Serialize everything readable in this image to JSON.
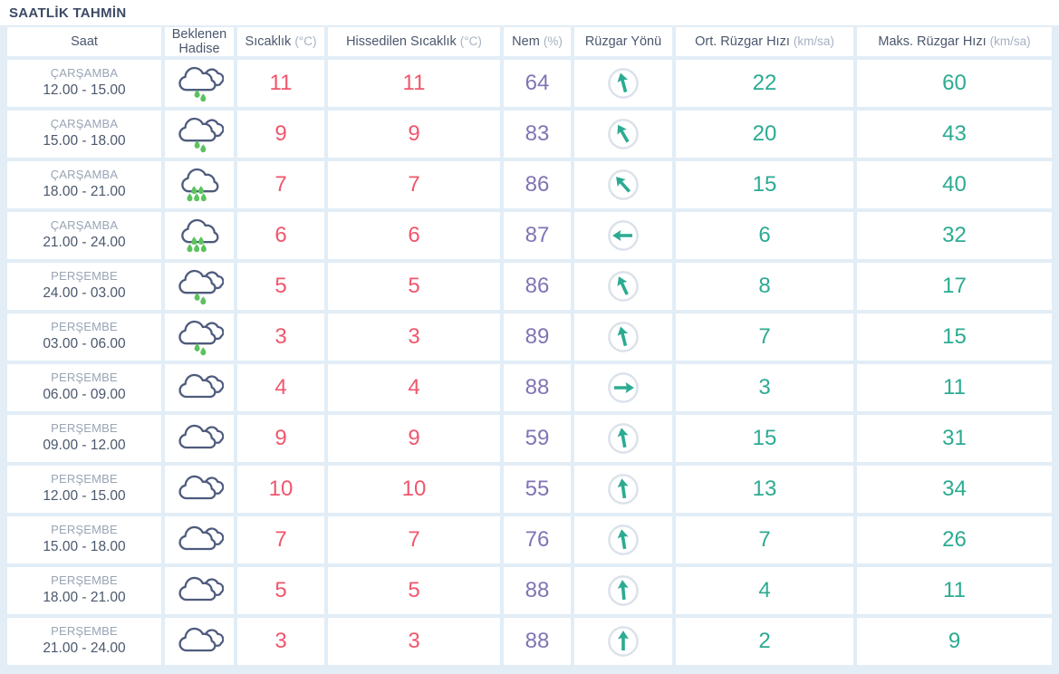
{
  "title": "SAATLİK TAHMİN",
  "colors": {
    "background": "#e2edf6",
    "title": "#3c4a64",
    "header_text": "#4a576d",
    "unit_text": "#a6b1c2",
    "temperature": "#f0566c",
    "humidity": "#8174b4",
    "wind": "#2bab92",
    "cloud_outline": "#4e5b7c",
    "raindrop": "#5cc25e",
    "wind_circle": "#dbe2ea"
  },
  "icons": {
    "light-rain": "two clouds with two green raindrops",
    "rain": "cloud with five green raindrops",
    "cloudy": "two overlapping clouds",
    "wind-arrow": "teal arrow in light gray circle showing wind direction"
  },
  "table": {
    "columns": [
      {
        "key": "saat",
        "label": "Saat",
        "unit": ""
      },
      {
        "key": "hadise",
        "label": "Beklenen Hadise",
        "unit": ""
      },
      {
        "key": "sicaklik",
        "label": "Sıcaklık",
        "unit": "(°C)"
      },
      {
        "key": "hissedilen",
        "label": "Hissedilen Sıcaklık",
        "unit": "(°C)"
      },
      {
        "key": "nem",
        "label": "Nem",
        "unit": "(%)"
      },
      {
        "key": "yon",
        "label": "Rüzgar Yönü",
        "unit": ""
      },
      {
        "key": "ort",
        "label": "Ort. Rüzgar Hızı",
        "unit": "(km/sa)"
      },
      {
        "key": "maks",
        "label": "Maks. Rüzgar Hızı",
        "unit": "(km/sa)"
      }
    ],
    "rows": [
      {
        "day": "ÇARŞAMBA",
        "time": "12.00 - 15.00",
        "icon": "light-rain",
        "sicaklik": "11",
        "hissedilen": "11",
        "nem": "64",
        "wind_dir_deg": -15,
        "ort": "22",
        "maks": "60"
      },
      {
        "day": "ÇARŞAMBA",
        "time": "15.00 - 18.00",
        "icon": "light-rain",
        "sicaklik": "9",
        "hissedilen": "9",
        "nem": "83",
        "wind_dir_deg": -30,
        "ort": "20",
        "maks": "43"
      },
      {
        "day": "ÇARŞAMBA",
        "time": "18.00 - 21.00",
        "icon": "rain",
        "sicaklik": "7",
        "hissedilen": "7",
        "nem": "86",
        "wind_dir_deg": -42,
        "ort": "15",
        "maks": "40"
      },
      {
        "day": "ÇARŞAMBA",
        "time": "21.00 - 24.00",
        "icon": "rain",
        "sicaklik": "6",
        "hissedilen": "6",
        "nem": "87",
        "wind_dir_deg": -90,
        "ort": "6",
        "maks": "32"
      },
      {
        "day": "PERŞEMBE",
        "time": "24.00 - 03.00",
        "icon": "light-rain",
        "sicaklik": "5",
        "hissedilen": "5",
        "nem": "86",
        "wind_dir_deg": -25,
        "ort": "8",
        "maks": "17"
      },
      {
        "day": "PERŞEMBE",
        "time": "03.00 - 06.00",
        "icon": "light-rain",
        "sicaklik": "3",
        "hissedilen": "3",
        "nem": "89",
        "wind_dir_deg": -14,
        "ort": "7",
        "maks": "15"
      },
      {
        "day": "PERŞEMBE",
        "time": "06.00 - 09.00",
        "icon": "cloudy",
        "sicaklik": "4",
        "hissedilen": "4",
        "nem": "88",
        "wind_dir_deg": 90,
        "ort": "3",
        "maks": "11"
      },
      {
        "day": "PERŞEMBE",
        "time": "09.00 - 12.00",
        "icon": "cloudy",
        "sicaklik": "9",
        "hissedilen": "9",
        "nem": "59",
        "wind_dir_deg": -10,
        "ort": "15",
        "maks": "31"
      },
      {
        "day": "PERŞEMBE",
        "time": "12.00 - 15.00",
        "icon": "cloudy",
        "sicaklik": "10",
        "hissedilen": "10",
        "nem": "55",
        "wind_dir_deg": -8,
        "ort": "13",
        "maks": "34"
      },
      {
        "day": "PERŞEMBE",
        "time": "15.00 - 18.00",
        "icon": "cloudy",
        "sicaklik": "7",
        "hissedilen": "7",
        "nem": "76",
        "wind_dir_deg": -9,
        "ort": "7",
        "maks": "26"
      },
      {
        "day": "PERŞEMBE",
        "time": "18.00 - 21.00",
        "icon": "cloudy",
        "sicaklik": "5",
        "hissedilen": "5",
        "nem": "88",
        "wind_dir_deg": -5,
        "ort": "4",
        "maks": "11"
      },
      {
        "day": "PERŞEMBE",
        "time": "21.00 - 24.00",
        "icon": "cloudy",
        "sicaklik": "3",
        "hissedilen": "3",
        "nem": "88",
        "wind_dir_deg": 0,
        "ort": "2",
        "maks": "9"
      }
    ]
  }
}
